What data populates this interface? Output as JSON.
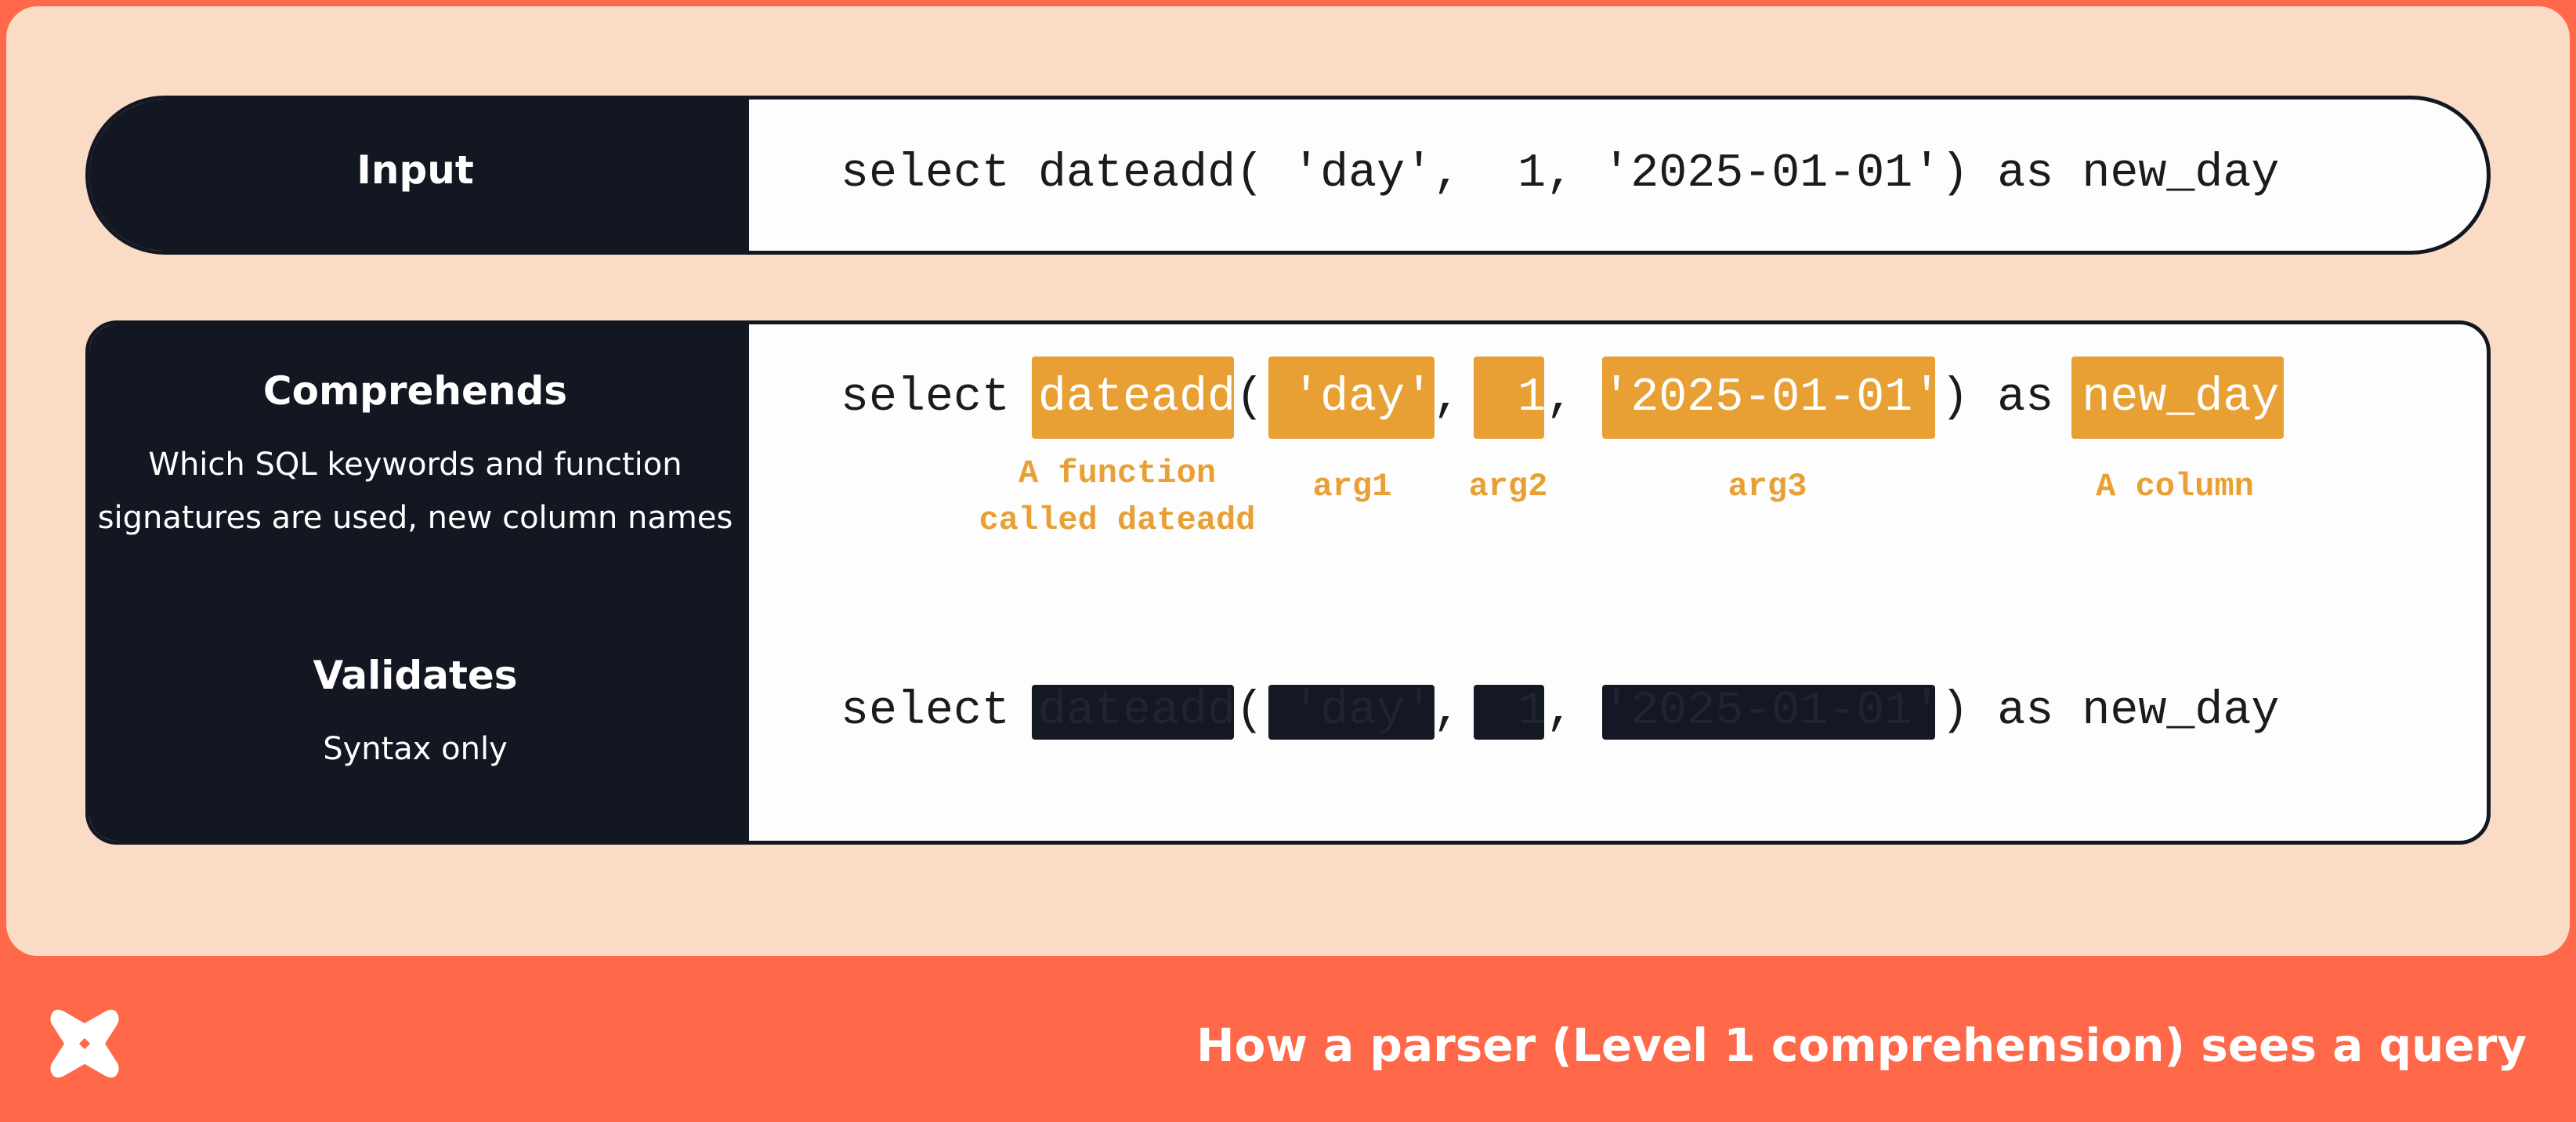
{
  "colors": {
    "background": "#FF6849",
    "panel": "#FADBC6",
    "dark": "#131722",
    "highlight": "#E8A035"
  },
  "rows": {
    "input": {
      "label": "Input",
      "code": [
        "select ",
        "dateadd",
        "( ",
        "'day'",
        ",  ",
        "1",
        ", ",
        "'2025-01-01'",
        ") as ",
        "new_day"
      ]
    },
    "comprehends": {
      "label": "Comprehends",
      "description": [
        "Which SQL keywords and function",
        "signatures are used, new column names"
      ],
      "code": [
        "select ",
        "dateadd",
        "( ",
        "'day'",
        ",  ",
        "1",
        ", ",
        "'2025-01-01'",
        ") as ",
        "new_day"
      ],
      "annotations": [
        "A function\ncalled dateadd",
        "arg1",
        "arg2",
        "arg3",
        "A column"
      ]
    },
    "validates": {
      "label": "Validates",
      "description": "Syntax only",
      "code": [
        "select ",
        "dateadd",
        "( ",
        "'day'",
        ",  ",
        "1",
        ", ",
        "'2025-01-01'",
        ") as ",
        "new_day"
      ]
    }
  },
  "footer": {
    "logo_icon": "dbt-logo-icon",
    "caption": "How a parser (Level 1 comprehension) sees a query"
  }
}
